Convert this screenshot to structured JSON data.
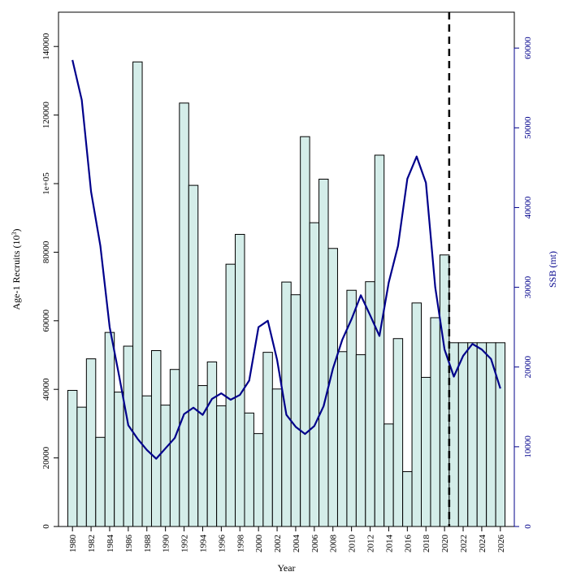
{
  "chart_data": {
    "type": "bar",
    "xlabel": "Year",
    "ylabel_left_base": "Age-1 Recruits (10",
    "ylabel_left_exp": "3",
    "ylabel_left_close": ")",
    "ylabel_right": "SSB (mt)",
    "ylim_left": [
      0,
      150000
    ],
    "ylim_right": [
      0,
      64500
    ],
    "xlim": [
      1978.5,
      2027.5
    ],
    "left_ticks": [
      0,
      20000,
      40000,
      60000,
      80000,
      100000,
      120000,
      140000
    ],
    "left_tick_labels": [
      "0",
      "20000",
      "40000",
      "60000",
      "80000",
      "1e+05",
      "120000",
      "140000"
    ],
    "right_ticks": [
      0,
      10000,
      20000,
      30000,
      40000,
      50000,
      60000
    ],
    "right_tick_labels": [
      "0",
      "10000",
      "20000",
      "30000",
      "40000",
      "50000",
      "60000"
    ],
    "x_ticks": [
      1980,
      1982,
      1984,
      1986,
      1988,
      1990,
      1992,
      1994,
      1996,
      1998,
      2000,
      2002,
      2004,
      2006,
      2008,
      2010,
      2012,
      2014,
      2016,
      2018,
      2020,
      2022,
      2024,
      2026
    ],
    "x_tick_labels": [
      "1980",
      "1982",
      "1984",
      "1986",
      "1988",
      "1990",
      "1992",
      "1994",
      "1996",
      "1998",
      "2000",
      "2002",
      "2004",
      "2006",
      "2008",
      "2010",
      "2012",
      "2014",
      "2016",
      "2018",
      "2020",
      "2022",
      "2024",
      "2026"
    ],
    "projection_start": 2020.5,
    "series": [
      {
        "axis": "left",
        "type": "bar",
        "x": [
          1980,
          1981,
          1982,
          1983,
          1984,
          1985,
          1986,
          1987,
          1988,
          1989,
          1990,
          1991,
          1992,
          1993,
          1994,
          1995,
          1996,
          1997,
          1998,
          1999,
          2000,
          2001,
          2002,
          2003,
          2004,
          2005,
          2006,
          2007,
          2008,
          2009,
          2010,
          2011,
          2012,
          2013,
          2014,
          2015,
          2016,
          2017,
          2018,
          2019,
          2020,
          2021,
          2022,
          2023,
          2024,
          2025,
          2026
        ],
        "values": [
          39700,
          34800,
          48900,
          26000,
          56600,
          39200,
          52600,
          135500,
          38100,
          51300,
          35400,
          45800,
          123500,
          99500,
          41100,
          48000,
          35200,
          76500,
          85200,
          33100,
          27100,
          50800,
          40100,
          71300,
          67600,
          113700,
          88600,
          101300,
          81100,
          51000,
          68900,
          50100,
          71400,
          108300,
          29900,
          54800,
          16000,
          65200,
          43500,
          60900,
          79200,
          53600,
          53600,
          53600,
          53600,
          53600,
          53600
        ]
      },
      {
        "axis": "right",
        "type": "line",
        "x": [
          1980,
          1981,
          1982,
          1983,
          1984,
          1985,
          1986,
          1987,
          1988,
          1989,
          1990,
          1991,
          1992,
          1993,
          1994,
          1995,
          1996,
          1997,
          1998,
          1999,
          2000,
          2001,
          2002,
          2003,
          2004,
          2005,
          2006,
          2007,
          2008,
          2009,
          2010,
          2011,
          2012,
          2013,
          2014,
          2015,
          2016,
          2017,
          2018,
          2019,
          2020,
          2021,
          2022,
          2023,
          2024,
          2025,
          2026
        ],
        "values": [
          58500,
          53500,
          42000,
          35200,
          25000,
          19000,
          12700,
          11000,
          9600,
          8500,
          9800,
          11100,
          14100,
          14900,
          14000,
          16000,
          16700,
          15900,
          16500,
          18300,
          25000,
          25800,
          20900,
          14000,
          12500,
          11600,
          12600,
          15100,
          19800,
          23400,
          26000,
          29000,
          26500,
          23900,
          30600,
          35200,
          43600,
          46400,
          43100,
          30000,
          22200,
          18800,
          21400,
          22900,
          22200,
          21000,
          17300
        ]
      }
    ],
    "colors": {
      "bar_fill": "#d4ede9",
      "bar_stroke": "#000000",
      "line": "#00008b",
      "right_axis": "#00008b"
    }
  }
}
